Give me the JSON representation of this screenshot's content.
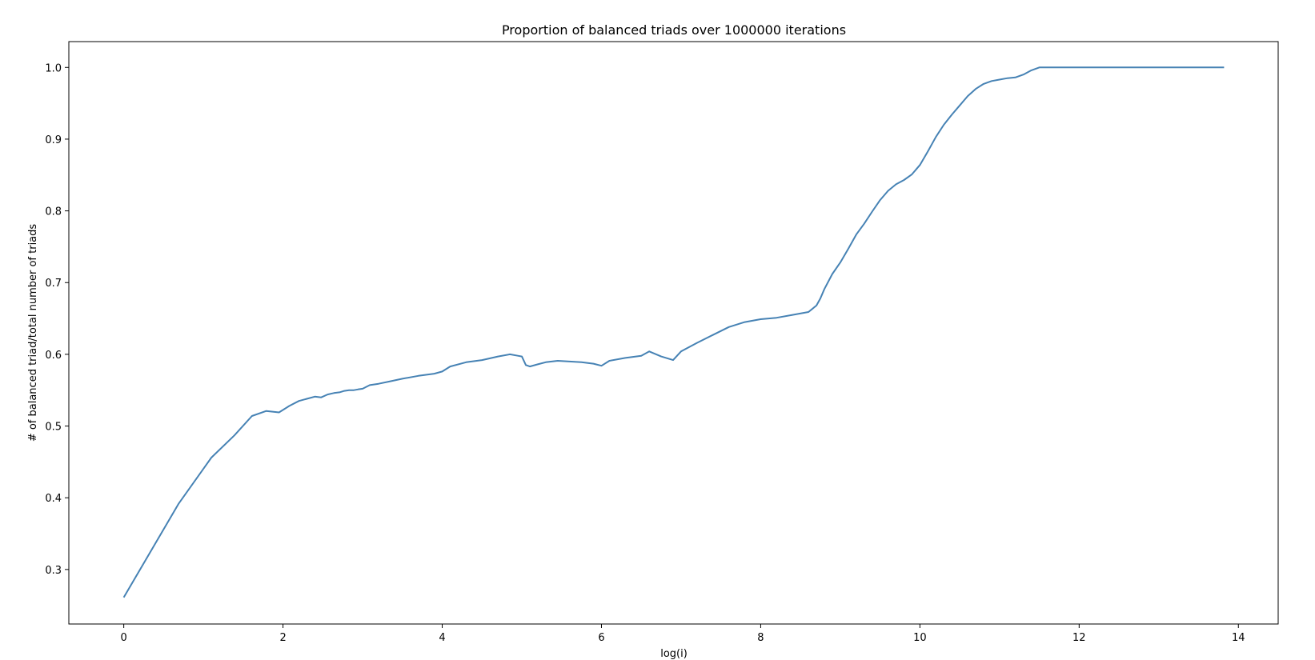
{
  "chart_data": {
    "type": "line",
    "title": "Proportion of balanced triads over 1000000 iterations",
    "xlabel": "log(i)",
    "ylabel": "# of balanced triad/total number of triads",
    "xlim": [
      -0.69,
      14.5
    ],
    "ylim": [
      0.224,
      1.036
    ],
    "x_ticks": [
      0,
      2,
      4,
      6,
      8,
      10,
      12,
      14
    ],
    "y_ticks": [
      0.3,
      0.4,
      0.5,
      0.6,
      0.7,
      0.8,
      0.9,
      1.0
    ],
    "x_tick_labels": [
      "0",
      "2",
      "4",
      "6",
      "8",
      "10",
      "12",
      "14"
    ],
    "y_tick_labels": [
      "0.3",
      "0.4",
      "0.5",
      "0.6",
      "0.7",
      "0.8",
      "0.9",
      "1.0"
    ],
    "grid": false,
    "line_color": "#4682b4",
    "series": [
      {
        "x": [
          0,
          0.69,
          1.1,
          1.39,
          1.61,
          1.79,
          1.95,
          2.08,
          2.2,
          2.3,
          2.4,
          2.48,
          2.56,
          2.64,
          2.71,
          2.77,
          2.83,
          2.89,
          2.94,
          3.0,
          3.09,
          3.2,
          3.33,
          3.5,
          3.7,
          3.9,
          4.0,
          4.1,
          4.3,
          4.5,
          4.7,
          4.85,
          4.95,
          5.0,
          5.05,
          5.1,
          5.2,
          5.3,
          5.45,
          5.6,
          5.75,
          5.9,
          6.0,
          6.1,
          6.3,
          6.5,
          6.6,
          6.75,
          6.9,
          7.0,
          7.2,
          7.4,
          7.6,
          7.8,
          8.0,
          8.2,
          8.4,
          8.6,
          8.7,
          8.75,
          8.8,
          8.9,
          9.0,
          9.1,
          9.2,
          9.3,
          9.4,
          9.5,
          9.6,
          9.7,
          9.8,
          9.9,
          10.0,
          10.1,
          10.2,
          10.3,
          10.4,
          10.5,
          10.6,
          10.7,
          10.8,
          10.9,
          11.0,
          11.1,
          11.2,
          11.3,
          11.4,
          11.5,
          11.7,
          12.0,
          12.5,
          13.0,
          13.5,
          13.82
        ],
        "y": [
          0.261,
          0.392,
          0.456,
          0.487,
          0.514,
          0.521,
          0.519,
          0.528,
          0.535,
          0.538,
          0.541,
          0.54,
          0.544,
          0.546,
          0.547,
          0.549,
          0.55,
          0.55,
          0.551,
          0.552,
          0.557,
          0.559,
          0.562,
          0.566,
          0.57,
          0.573,
          0.576,
          0.583,
          0.589,
          0.592,
          0.597,
          0.6,
          0.598,
          0.597,
          0.585,
          0.583,
          0.586,
          0.589,
          0.591,
          0.59,
          0.589,
          0.587,
          0.584,
          0.591,
          0.595,
          0.598,
          0.604,
          0.597,
          0.592,
          0.604,
          0.616,
          0.627,
          0.638,
          0.645,
          0.649,
          0.651,
          0.655,
          0.659,
          0.668,
          0.678,
          0.691,
          0.712,
          0.728,
          0.747,
          0.767,
          0.782,
          0.799,
          0.815,
          0.828,
          0.837,
          0.843,
          0.851,
          0.864,
          0.883,
          0.903,
          0.92,
          0.934,
          0.947,
          0.96,
          0.97,
          0.977,
          0.981,
          0.983,
          0.985,
          0.986,
          0.99,
          0.996,
          1.0,
          1.0,
          1.0,
          1.0,
          1.0,
          1.0,
          1.0
        ]
      }
    ]
  }
}
